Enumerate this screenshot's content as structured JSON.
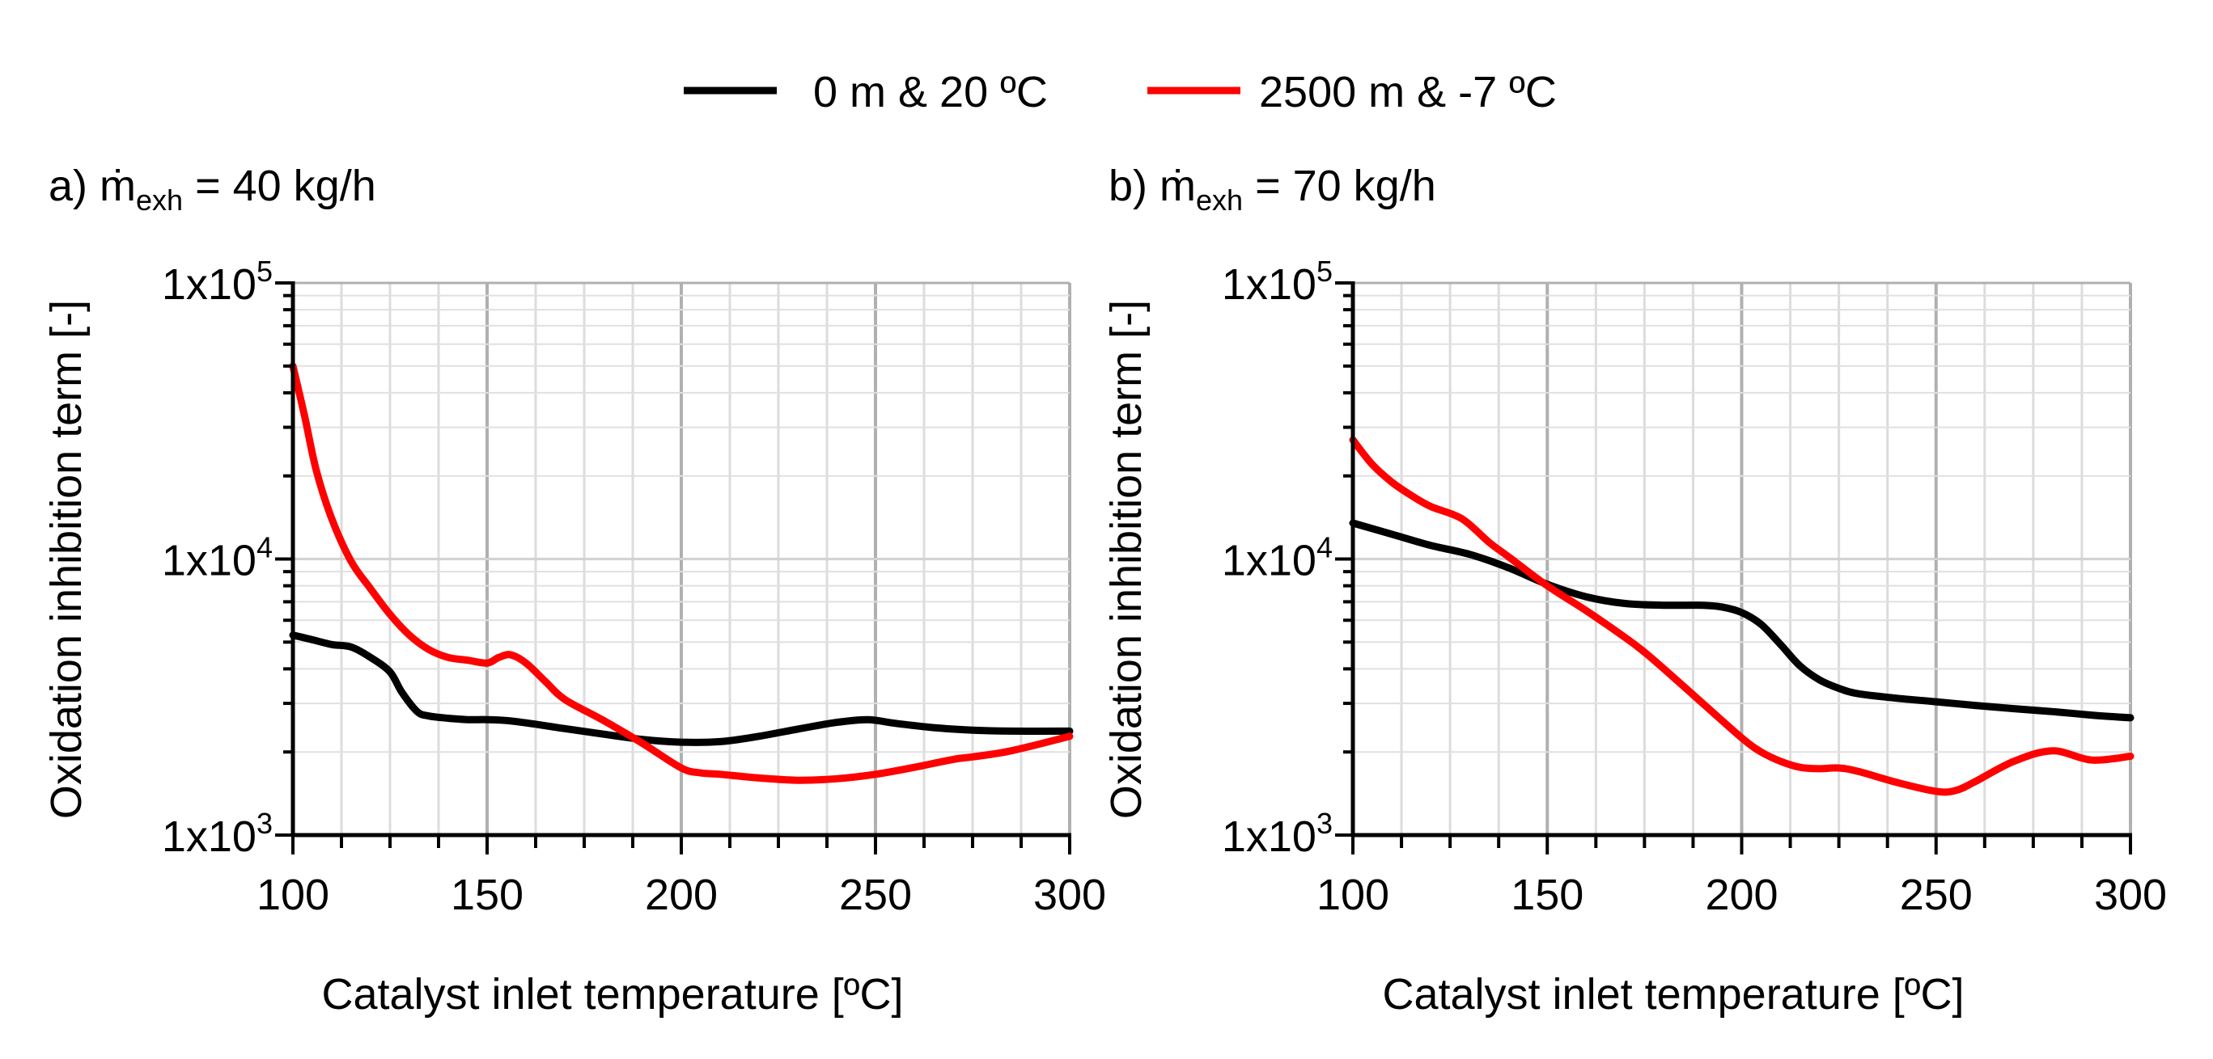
{
  "legend": [
    {
      "label": "0 m & 20 ºC",
      "color": "#000000"
    },
    {
      "label": "2500 m & -7 ºC",
      "color": "#ff0000"
    }
  ],
  "chart_data": [
    {
      "type": "line",
      "title_prefix": "a) ",
      "title_symbol": "ṁ",
      "title_sub": "exh",
      "title_rest": " = 40 kg/h",
      "xlabel": "Catalyst inlet temperature [ºC]",
      "ylabel": "Oxidation inhibition term [-]",
      "xlim": [
        100,
        300
      ],
      "ylim": [
        1000,
        100000
      ],
      "yscale": "log",
      "xticks": [
        100,
        150,
        200,
        250,
        300
      ],
      "xtick_labels": [
        "100",
        "150",
        "200",
        "250",
        "300"
      ],
      "yticks": [
        1000,
        10000,
        100000
      ],
      "ytick_labels": [
        {
          "base": "1x10",
          "exp": "3"
        },
        {
          "base": "1x10",
          "exp": "4"
        },
        {
          "base": "1x10",
          "exp": "5"
        }
      ],
      "grid": true,
      "series": [
        {
          "name": "0 m & 20 ºC",
          "color": "#000000",
          "x": [
            100,
            105,
            110,
            115,
            120,
            125,
            128,
            132,
            135,
            140,
            145,
            150,
            155,
            160,
            170,
            180,
            190,
            200,
            210,
            220,
            230,
            240,
            248,
            255,
            265,
            275,
            285,
            300
          ],
          "y": [
            5300,
            5100,
            4900,
            4800,
            4400,
            3900,
            3300,
            2800,
            2700,
            2650,
            2620,
            2620,
            2600,
            2550,
            2430,
            2320,
            2220,
            2170,
            2180,
            2280,
            2420,
            2560,
            2620,
            2540,
            2450,
            2400,
            2380,
            2380
          ]
        },
        {
          "name": "2500 m & -7 ºC",
          "color": "#ff0000",
          "x": [
            100,
            103,
            106,
            110,
            115,
            120,
            125,
            130,
            135,
            140,
            145,
            150,
            153,
            156,
            160,
            165,
            170,
            180,
            190,
            200,
            205,
            210,
            220,
            230,
            240,
            250,
            260,
            270,
            275,
            285,
            300
          ],
          "y": [
            50000,
            33000,
            21000,
            14000,
            9800,
            7800,
            6300,
            5300,
            4700,
            4400,
            4300,
            4200,
            4400,
            4500,
            4200,
            3600,
            3100,
            2600,
            2150,
            1750,
            1680,
            1660,
            1610,
            1580,
            1600,
            1660,
            1760,
            1880,
            1920,
            2020,
            2280
          ]
        }
      ]
    },
    {
      "type": "line",
      "title_prefix": "b) ",
      "title_symbol": "ṁ",
      "title_sub": "exh",
      "title_rest": " = 70 kg/h",
      "xlabel": "Catalyst inlet temperature [ºC]",
      "ylabel": "Oxidation inhibition term [-]",
      "xlim": [
        100,
        300
      ],
      "ylim": [
        1000,
        100000
      ],
      "yscale": "log",
      "xticks": [
        100,
        150,
        200,
        250,
        300
      ],
      "xtick_labels": [
        "100",
        "150",
        "200",
        "250",
        "300"
      ],
      "yticks": [
        1000,
        10000,
        100000
      ],
      "ytick_labels": [
        {
          "base": "1x10",
          "exp": "3"
        },
        {
          "base": "1x10",
          "exp": "4"
        },
        {
          "base": "1x10",
          "exp": "5"
        }
      ],
      "grid": true,
      "series": [
        {
          "name": "0 m & 20 ºC",
          "color": "#000000",
          "x": [
            100,
            110,
            120,
            130,
            140,
            150,
            160,
            170,
            180,
            190,
            195,
            200,
            205,
            210,
            215,
            220,
            225,
            230,
            240,
            250,
            260,
            270,
            280,
            290,
            300
          ],
          "y": [
            13500,
            12300,
            11200,
            10400,
            9300,
            8100,
            7300,
            6900,
            6800,
            6800,
            6700,
            6400,
            5800,
            4900,
            4100,
            3650,
            3400,
            3250,
            3130,
            3040,
            2950,
            2870,
            2800,
            2720,
            2660
          ]
        },
        {
          "name": "2500 m & -7 ºC",
          "color": "#ff0000",
          "x": [
            100,
            105,
            110,
            115,
            120,
            128,
            135,
            140,
            150,
            160,
            170,
            175,
            180,
            190,
            200,
            205,
            210,
            215,
            220,
            225,
            230,
            240,
            250,
            255,
            260,
            270,
            280,
            290,
            300
          ],
          "y": [
            27000,
            22000,
            19000,
            17000,
            15500,
            14000,
            11500,
            10200,
            8000,
            6500,
            5200,
            4600,
            4000,
            3000,
            2250,
            2000,
            1850,
            1760,
            1740,
            1750,
            1700,
            1550,
            1440,
            1450,
            1560,
            1850,
            2020,
            1870,
            1930
          ]
        }
      ]
    }
  ]
}
